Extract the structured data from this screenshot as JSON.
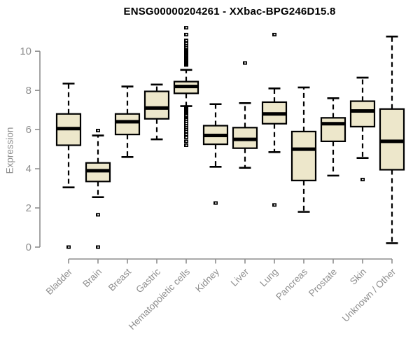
{
  "colors": {
    "box_fill": "#EDE7CB",
    "box_stroke": "#000000",
    "median": "#000000",
    "whisker": "#000000",
    "axis": "#8e8e8e",
    "tick_label": "#8e8e8e",
    "title": "#000000",
    "background": "#ffffff"
  },
  "chart_data": {
    "type": "boxplot",
    "title": "ENSG00000204261 - XXbac-BPG246D15.8",
    "ylabel": "Expression",
    "xlabel": "",
    "ylim": [
      0,
      11.3
    ],
    "yticks": [
      0,
      2,
      4,
      6,
      8,
      10
    ],
    "grid": false,
    "legend": "none",
    "categories": [
      "Bladder",
      "Brain",
      "Breast",
      "Gastric",
      "Hematopoietic cells",
      "Kidney",
      "Liver",
      "Lung",
      "Pancreas",
      "Prostate",
      "Skin",
      "Unknown / Other"
    ],
    "series": [
      {
        "name": "Bladder",
        "low": 3.05,
        "q1": 5.2,
        "median": 6.05,
        "q3": 6.8,
        "high": 8.35,
        "outliers": [
          0
        ]
      },
      {
        "name": "Brain",
        "low": 2.55,
        "q1": 3.35,
        "median": 3.9,
        "q3": 4.3,
        "high": 5.7,
        "outliers": [
          5.95,
          1.65,
          0
        ]
      },
      {
        "name": "Breast",
        "low": 4.6,
        "q1": 5.75,
        "median": 6.4,
        "q3": 6.8,
        "high": 8.2,
        "outliers": []
      },
      {
        "name": "Gastric",
        "low": 5.5,
        "q1": 6.55,
        "median": 7.1,
        "q3": 7.95,
        "high": 8.3,
        "outliers": []
      },
      {
        "name": "Hematopoietic cells",
        "low": 7.2,
        "q1": 7.85,
        "median": 8.2,
        "q3": 8.45,
        "high": 9.05,
        "outliers": [
          9.3,
          9.35,
          9.4,
          9.45,
          9.5,
          9.55,
          9.6,
          9.65,
          9.7,
          9.75,
          9.8,
          9.85,
          9.9,
          9.95,
          10.0,
          10.05,
          10.1,
          10.15,
          10.2,
          10.3,
          10.4,
          10.55,
          10.85,
          11.2,
          7.15,
          7.1,
          7.05,
          7.0,
          6.95,
          6.9,
          6.85,
          6.8,
          6.75,
          6.7,
          6.6,
          6.55,
          6.5,
          6.4,
          6.3,
          6.2,
          6.1,
          6.0,
          5.9,
          5.75,
          5.6,
          5.4,
          5.2
        ]
      },
      {
        "name": "Kidney",
        "low": 4.1,
        "q1": 5.25,
        "median": 5.7,
        "q3": 6.2,
        "high": 7.3,
        "outliers": [
          2.25
        ]
      },
      {
        "name": "Liver",
        "low": 4.05,
        "q1": 5.05,
        "median": 5.5,
        "q3": 6.1,
        "high": 7.35,
        "outliers": [
          9.4
        ]
      },
      {
        "name": "Lung",
        "low": 4.85,
        "q1": 6.3,
        "median": 6.8,
        "q3": 7.4,
        "high": 8.1,
        "outliers": [
          10.85,
          2.15
        ]
      },
      {
        "name": "Pancreas",
        "low": 1.8,
        "q1": 3.4,
        "median": 5.0,
        "q3": 5.9,
        "high": 8.15,
        "outliers": []
      },
      {
        "name": "Prostate",
        "low": 3.65,
        "q1": 5.4,
        "median": 6.3,
        "q3": 6.6,
        "high": 7.6,
        "outliers": []
      },
      {
        "name": "Skin",
        "low": 4.55,
        "q1": 6.15,
        "median": 6.95,
        "q3": 7.45,
        "high": 8.65,
        "outliers": [
          3.45
        ]
      },
      {
        "name": "Unknown / Other",
        "low": 0.2,
        "q1": 3.95,
        "median": 5.4,
        "q3": 7.05,
        "high": 10.75,
        "outliers": []
      }
    ]
  }
}
